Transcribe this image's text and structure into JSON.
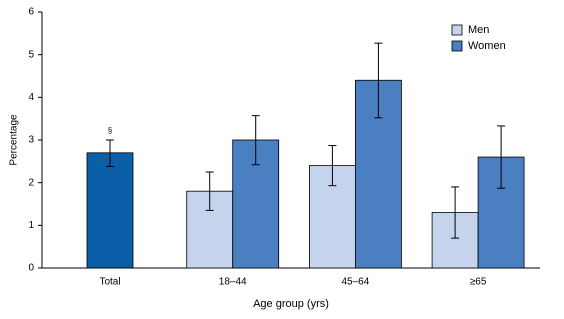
{
  "chart_data": {
    "type": "bar",
    "y_label": "Percentage",
    "x_label": "Age group (yrs)",
    "categories": [
      "Total",
      "18–44",
      "45–64",
      "≥65"
    ],
    "total": {
      "value": 2.7,
      "ci_low": 2.38,
      "ci_high": 3.0,
      "color": "#0b5ea8",
      "annotation": "§"
    },
    "series": [
      {
        "name": "Men",
        "color": "#c5d3ec",
        "values": [
          null,
          1.8,
          2.4,
          1.3
        ],
        "ci_low": [
          null,
          1.35,
          1.93,
          0.7
        ],
        "ci_high": [
          null,
          2.25,
          2.87,
          1.9
        ]
      },
      {
        "name": "Women",
        "color": "#4a7fc1",
        "values": [
          null,
          3.0,
          4.4,
          2.6
        ],
        "ci_low": [
          null,
          2.42,
          3.52,
          1.87
        ],
        "ci_high": [
          null,
          3.57,
          5.27,
          3.33
        ]
      }
    ],
    "ylim": [
      0,
      6
    ],
    "yticks": [
      0,
      1,
      2,
      3,
      4,
      5,
      6
    ],
    "legend": "top-right"
  }
}
